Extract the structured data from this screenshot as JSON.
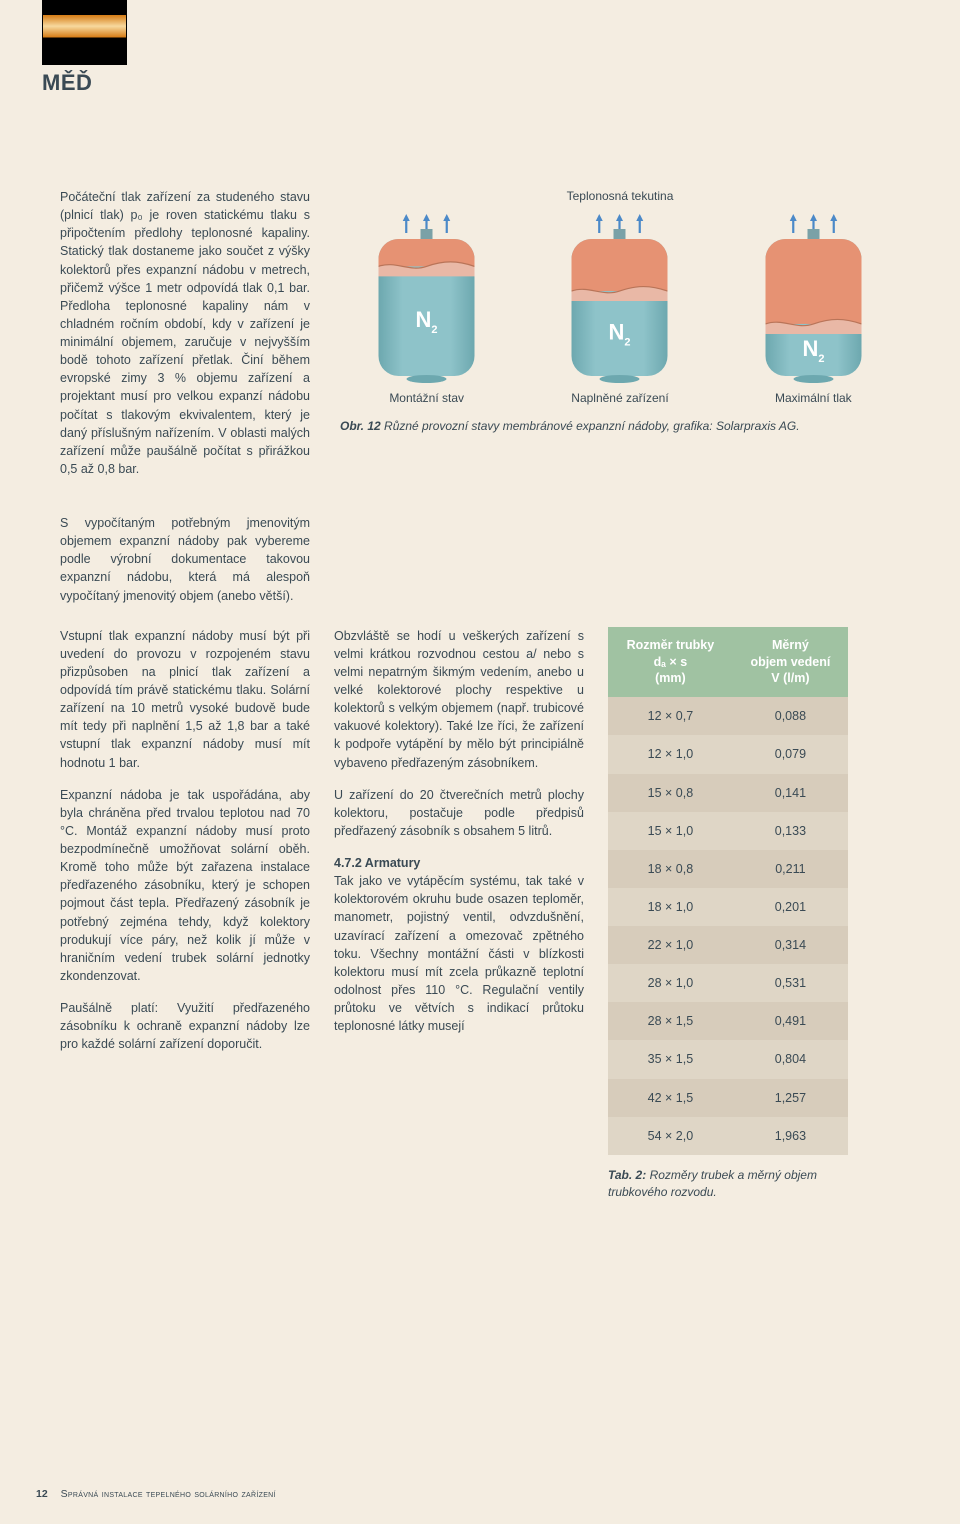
{
  "logo": {
    "label": "MĚĎ"
  },
  "paragraphs": {
    "p1": "Počáteční tlak zařízení za studeného stavu (plnicí tlak) p₀ je roven statickému tlaku s připočtením předlohy teplonosné kapaliny. Statický tlak dostaneme jako součet z výšky kolektorů přes expanzní nádobu v metrech, přičemž výšce 1 metr odpovídá tlak 0,1 bar. Předloha teplonosné kapaliny nám v  chladném ročním období, kdy v zařízení je minimální objemem, zaručuje v nejvyšším bodě tohoto zařízení přetlak. Činí během evropské zimy 3 % objemu zařízení a projektant musí pro velkou expanzí nádobu počítat s tlakovým ekvivalentem, který je daný příslušným nařízením. V oblasti malých zařízení může paušálně počítat s přirážkou 0,5 až 0,8 bar.",
    "p2": "S vypočítaným potřebným jmenovitým objemem expanzní nádoby pak vybereme podle výrobní dokumentace takovou expanzní nádobu, která má alespoň vypočítaný jmenovitý objem (anebo větší).",
    "p3": "Vstupní tlak expanzní nádoby musí být při uvedení do provozu v rozpojeném stavu přizpůsoben na plnicí tlak zařízení a odpovídá tím právě statickému tlaku. Solární zařízení na 10 metrů vysoké budově bude mít tedy při naplnění 1,5 až 1,8 bar a také vstupní tlak expanzní nádoby musí mít hodnotu 1 bar.",
    "p4": "Expanzní nádoba je tak uspořádána, aby byla chráněna před trvalou teplotou nad 70 °C. Montáž expanzní nádoby musí proto bezpodmínečně umožňovat solární oběh. Kromě toho může být zařazena instalace předřazeného zásobníku, který je schopen pojmout část tepla. Předřazený zásobník je potřebný zejména tehdy, když kolektory produkují více páry, než kolik jí může v hraničním vedení trubek solární jednotky zkondenzovat.",
    "p5": "Paušálně platí: Využití předřazeného zásobníku k ochraně expanzní nádoby lze pro každé solární zařízení doporučit.",
    "p6": "Obzvláště se hodí u veškerých zařízení s velmi krátkou rozvodnou cestou a/ nebo s velmi nepatrným šikmým vedením, anebo u velké kolektorové plochy respektive u kolektorů s velkým objemem (např. trubicové vakuové kolektory). Také lze říci, že zařízení k podpoře vytápění by mělo být principiálně vybaveno předřazeným zásobníkem.",
    "p7": "U zařízení do 20 čtverečních metrů plochy kolektoru, postačuje podle předpisů předřazený zásobník s obsahem 5 litrů.",
    "section_head": "4.7.2 Armatury",
    "p8": "Tak jako ve vytápěcím systému, tak také v kolektorovém okruhu bude osazen teploměr, manometr, pojistný ventil, odvzdušnění, uzavírací zařízení a omezovač zpětného toku. Všechny montážní části v blízkosti kolektoru musí mít zcela průkazně teplotní odolnost přes 110 °C. Regulační ventily průtoku ve větvích s indikací průtoku teplonosné látky musejí"
  },
  "figure": {
    "top_label": "Teplonosná tekutina",
    "vessel_gas_label": "N",
    "gas_sub": "2",
    "labels": [
      "Montážní stav",
      "Naplněné zařízení",
      "Maximální tlak"
    ],
    "caption_bold": "Obr. 12",
    "caption_rest": " Různé provozní stavy membránové expanzní nádoby, grafika: Solarpraxis AG.",
    "colors": {
      "body": "#8ec3c9",
      "body_shadow": "#6da8af",
      "cap": "#7aa1a7",
      "membrane": "#e9b8a6",
      "liquid": "#e69273",
      "arrow": "#4b89c8",
      "n2": "#ffffff"
    },
    "membrane_levels": [
      0.2,
      0.38,
      0.62
    ]
  },
  "table": {
    "header1_line1": "Rozměr trubky",
    "header1_line2": "dₐ × s",
    "header1_line3": "(mm)",
    "header2_line1": "Měrný",
    "header2_line2": "objem vedení",
    "header2_line3": "V (l/m)",
    "rows": [
      {
        "dim": "12 × 0,7",
        "v": "0,088"
      },
      {
        "dim": "12 × 1,0",
        "v": "0,079"
      },
      {
        "dim": "15 × 0,8",
        "v": "0,141"
      },
      {
        "dim": "15 × 1,0",
        "v": "0,133"
      },
      {
        "dim": "18 × 0,8",
        "v": "0,211"
      },
      {
        "dim": "18 × 1,0",
        "v": "0,201"
      },
      {
        "dim": "22 × 1,0",
        "v": "0,314"
      },
      {
        "dim": "28 × 1,0",
        "v": "0,531"
      },
      {
        "dim": "28 × 1,5",
        "v": "0,491"
      },
      {
        "dim": "35 × 1,5",
        "v": "0,804"
      },
      {
        "dim": "42 × 1,5",
        "v": "1,257"
      },
      {
        "dim": "54 × 2,0",
        "v": "1,963"
      }
    ],
    "caption_bold": "Tab. 2:",
    "caption_rest": " Rozměry trubek a měrný objem trubkového rozvodu.",
    "colors": {
      "header_bg": "#a0c2a2",
      "band_a": "#d7ccbb",
      "band_b": "#dfd6c6"
    }
  },
  "footer": {
    "page_no": "12",
    "title": "Správná instalace tepelného solárního zařízení"
  }
}
